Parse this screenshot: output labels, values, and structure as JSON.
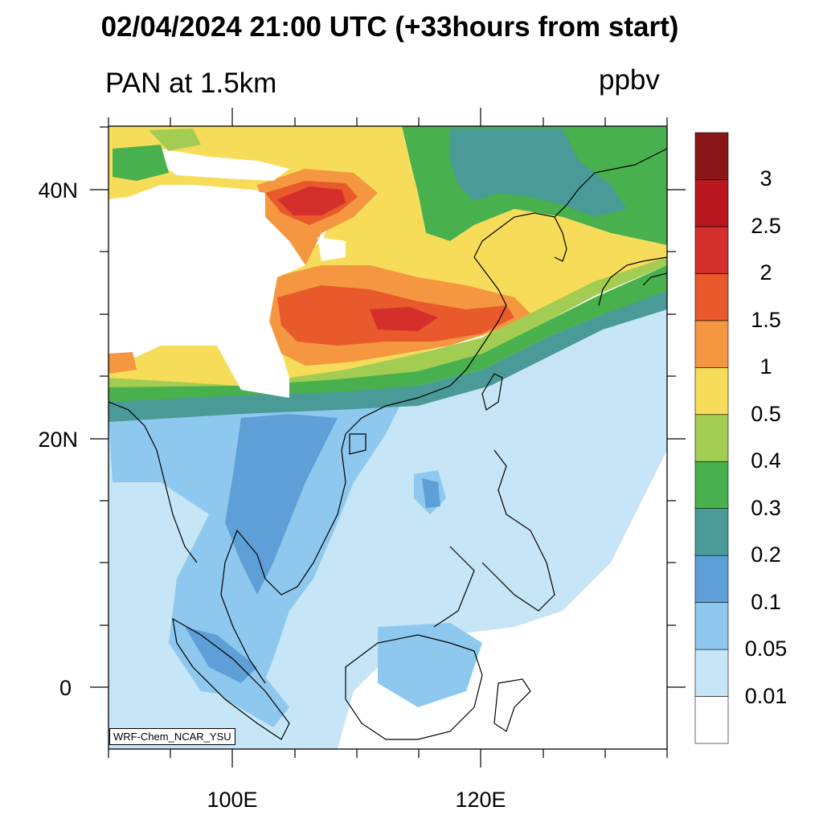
{
  "title": "02/04/2024 21:00 UTC (+33hours from start)",
  "subtitle_left": "PAN at 1.5km",
  "subtitle_right": "ppbv",
  "credit": "WRF-Chem_NCAR_YSU",
  "map": {
    "lon_range": [
      90,
      135
    ],
    "lat_range": [
      -5,
      45
    ],
    "lat_labels": [
      "40N",
      "20N",
      "0"
    ],
    "lon_labels": [
      "100E",
      "120E"
    ]
  },
  "colorbar": {
    "levels": [
      "0.01",
      "0.05",
      "0.1",
      "0.2",
      "0.3",
      "0.4",
      "0.5",
      "1",
      "1.5",
      "2",
      "2.5",
      "3"
    ],
    "colors": [
      "#ffffff",
      "#c6e5f7",
      "#8ec8ee",
      "#5d9fd6",
      "#4a9a97",
      "#48b04c",
      "#a3cc52",
      "#f7dc5a",
      "#f59640",
      "#e8592b",
      "#d42f2a",
      "#b8171f",
      "#8a1619"
    ]
  }
}
